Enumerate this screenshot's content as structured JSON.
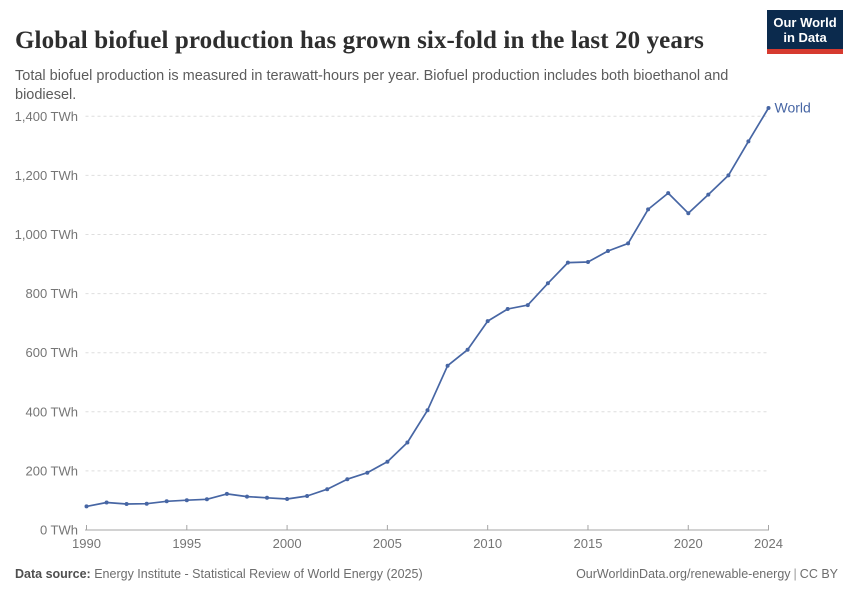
{
  "header": {
    "title": "Global biofuel production has grown six-fold in the last 20 years",
    "subtitle": "Total biofuel production is measured in terawatt-hours per year. Biofuel production includes both bioethanol and biodiesel.",
    "logo": {
      "line1": "Our World",
      "line2": "in Data",
      "bg_color": "#0b2a4d",
      "accent_color": "#d63a2f"
    }
  },
  "chart_data": {
    "type": "line",
    "title": "Global biofuel production has grown six-fold in the last 20 years",
    "subtitle": "Total biofuel production is measured in terawatt-hours per year. Biofuel production includes both bioethanol and biodiesel.",
    "xlabel": "",
    "ylabel": "TWh",
    "grid": "horizontal-dashed",
    "legend_position": "end-of-line",
    "ylim": [
      0,
      1470
    ],
    "x": [
      1990,
      1991,
      1992,
      1993,
      1994,
      1995,
      1996,
      1997,
      1998,
      1999,
      2000,
      2001,
      2002,
      2003,
      2004,
      2005,
      2006,
      2007,
      2008,
      2009,
      2010,
      2011,
      2012,
      2013,
      2014,
      2015,
      2016,
      2017,
      2018,
      2019,
      2020,
      2021,
      2022,
      2023,
      2024
    ],
    "x_ticks": [
      1990,
      1995,
      2000,
      2005,
      2010,
      2015,
      2020,
      2024
    ],
    "y_ticks": [
      {
        "value": 0,
        "label": "0 TWh"
      },
      {
        "value": 200,
        "label": "200 TWh"
      },
      {
        "value": 400,
        "label": "400 TWh"
      },
      {
        "value": 600,
        "label": "600 TWh"
      },
      {
        "value": 800,
        "label": "800 TWh"
      },
      {
        "value": 1000,
        "label": "1,000 TWh"
      },
      {
        "value": 1200,
        "label": "1,200 TWh"
      },
      {
        "value": 1400,
        "label": "1,400 TWh"
      }
    ],
    "series": [
      {
        "name": "World",
        "color": "#4766a4",
        "values": [
          80,
          93,
          88,
          89,
          97,
          101,
          104,
          122,
          113,
          109,
          105,
          115,
          138,
          172,
          194,
          231,
          296,
          405,
          556,
          610,
          707,
          748,
          761,
          835,
          905,
          907,
          944,
          970,
          1085,
          1140,
          1072,
          1135,
          1200,
          1315,
          1428
        ]
      }
    ]
  },
  "footer": {
    "source_label": "Data source:",
    "source_value": "Energy Institute - Statistical Review of World Energy (2025)",
    "link": "OurWorldinData.org/renewable-energy",
    "divider": "|",
    "license": "CC BY"
  }
}
